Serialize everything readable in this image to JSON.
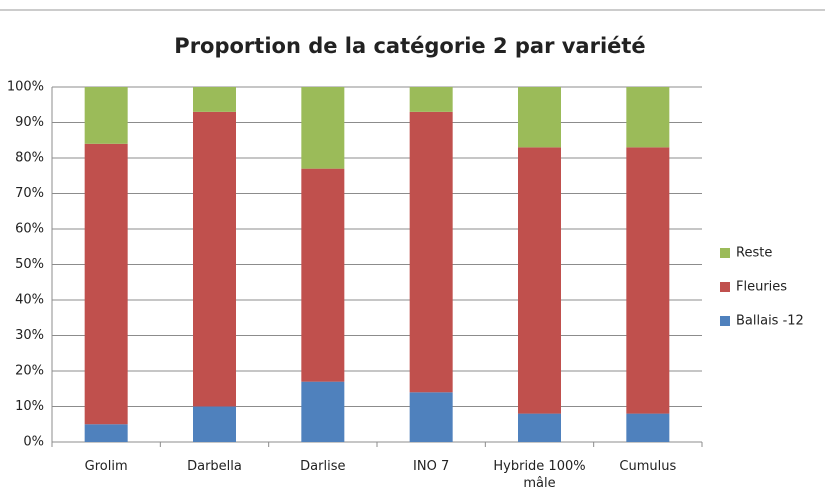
{
  "chart_data": {
    "type": "stacked_bar",
    "title": "Proportion de la catégorie 2 par variété",
    "categories": [
      "Grolim",
      "Darbella",
      "Darlise",
      "INO 7",
      "Hybride 100% mâle",
      "Cumulus"
    ],
    "series": [
      {
        "name": "Ballais -12",
        "color": "#4f81bd",
        "values": [
          5,
          10,
          17,
          14,
          8,
          8
        ]
      },
      {
        "name": "Fleuries",
        "color": "#c0504d",
        "values": [
          79,
          83,
          60,
          79,
          75,
          75
        ]
      },
      {
        "name": "Reste",
        "color": "#9bbb59",
        "values": [
          16,
          7,
          23,
          7,
          17,
          17
        ]
      }
    ],
    "ylim": [
      0,
      100
    ],
    "yticks": [
      {
        "value": 0,
        "label": "0%"
      },
      {
        "value": 10,
        "label": "10%"
      },
      {
        "value": 20,
        "label": "20%"
      },
      {
        "value": 30,
        "label": "30%"
      },
      {
        "value": 40,
        "label": "40%"
      },
      {
        "value": 50,
        "label": "50%"
      },
      {
        "value": 60,
        "label": "60%"
      },
      {
        "value": 70,
        "label": "70%"
      },
      {
        "value": 80,
        "label": "80%"
      },
      {
        "value": 90,
        "label": "90%"
      },
      {
        "value": 100,
        "label": "100%"
      }
    ],
    "grid": true,
    "legend": "right"
  }
}
